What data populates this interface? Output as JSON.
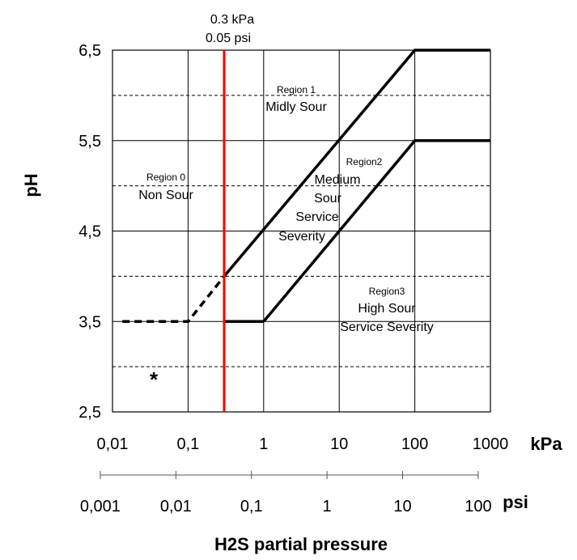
{
  "chart_data": {
    "type": "line",
    "ylabel": "pH",
    "xlabel": "H2S partial pressure",
    "x_unit": "kPa",
    "x2_unit": "psi",
    "x_scale": "log",
    "xlim": [
      0.01,
      1000
    ],
    "ylim": [
      2.5,
      6.5
    ],
    "x_ticks": [
      0.01,
      0.1,
      1,
      10,
      100,
      1000
    ],
    "x_tick_labels": [
      "0,01",
      "0,1",
      "1",
      "10",
      "100",
      "1000"
    ],
    "y_ticks": [
      2.5,
      3.5,
      4.5,
      5.5,
      6.5
    ],
    "y_tick_labels": [
      "2,5",
      "3,5",
      "4,5",
      "5,5",
      "6,5"
    ],
    "y_dashed_grid": [
      3.0,
      4.0,
      5.0,
      6.0
    ],
    "psi_ticks_kpa": [
      0.006895,
      0.06895,
      0.6895,
      6.895,
      68.95,
      689.5
    ],
    "psi_tick_labels": [
      "0,001",
      "0,01",
      "0,1",
      "1",
      "10",
      "100"
    ],
    "threshold": {
      "x": 0.3,
      "label_kpa": "0.3 kPa",
      "label_psi": "0.05 psi",
      "color": "#ff0000"
    },
    "series": [
      {
        "name": "boundary-0-1-dashed",
        "style": "dashed",
        "points": [
          [
            0.0135,
            3.5
          ],
          [
            0.1,
            3.5
          ],
          [
            0.3,
            4.0
          ]
        ]
      },
      {
        "name": "boundary-1-2",
        "style": "solid",
        "points": [
          [
            0.3,
            4.0
          ],
          [
            100,
            6.5
          ],
          [
            1000,
            6.5
          ]
        ]
      },
      {
        "name": "boundary-1-threshold-base",
        "style": "solid",
        "points": [
          [
            0.3,
            3.5
          ],
          [
            1,
            3.5
          ]
        ]
      },
      {
        "name": "boundary-2-3",
        "style": "solid",
        "points": [
          [
            1,
            3.5
          ],
          [
            100,
            5.5
          ],
          [
            1000,
            5.5
          ]
        ]
      }
    ],
    "regions": [
      {
        "name": "Region 0",
        "desc": [
          "Non Sour"
        ]
      },
      {
        "name": "Region 1",
        "desc": [
          "Midly Sour"
        ]
      },
      {
        "name": "Region2",
        "desc": [
          "Medium",
          "Sour",
          "Service",
          "Severity"
        ]
      },
      {
        "name": "Region3",
        "desc": [
          "High Sour",
          "Service Severity"
        ]
      }
    ],
    "annotation": "*"
  }
}
